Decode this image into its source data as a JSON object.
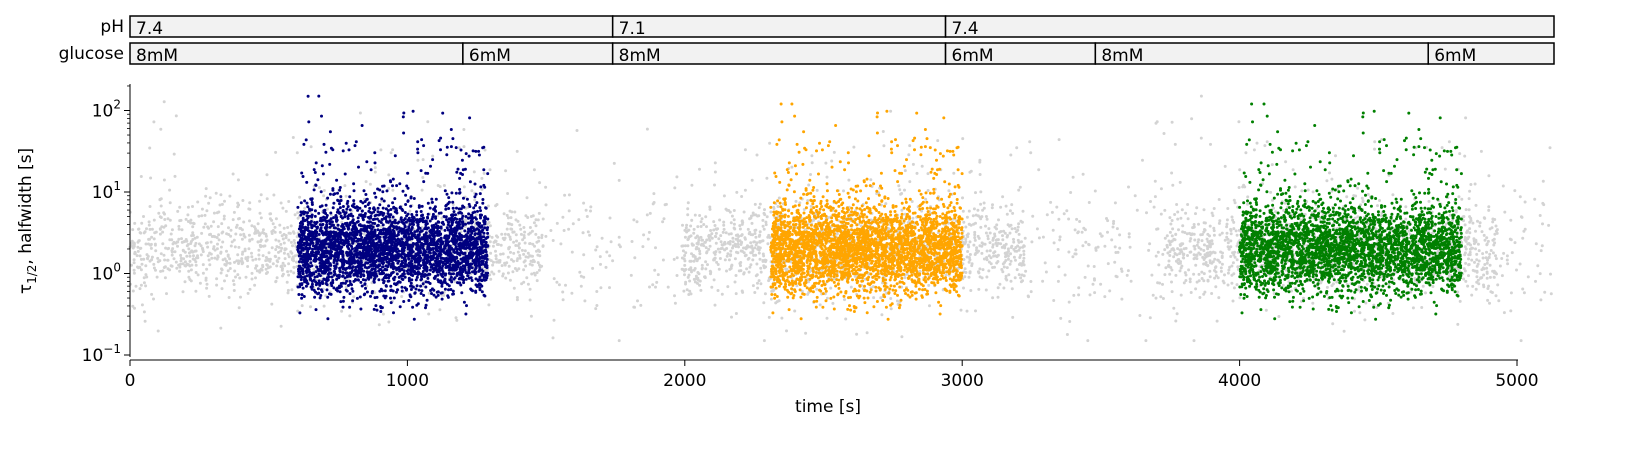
{
  "chart_data": {
    "type": "scatter",
    "xlabel": "time [s]",
    "ylabel_main": "τ",
    "ylabel_sub": "1/2",
    "ylabel_rest": ", halfwidth [s]",
    "xlim": [
      0,
      5000
    ],
    "ylim": [
      0.1,
      200
    ],
    "yscale": "log",
    "x_ticks": [
      {
        "value": 0,
        "label": "0"
      },
      {
        "value": 1000,
        "label": "1000"
      },
      {
        "value": 2000,
        "label": "2000"
      },
      {
        "value": 3000,
        "label": "3000"
      },
      {
        "value": 4000,
        "label": "4000"
      },
      {
        "value": 5000,
        "label": "5000"
      }
    ],
    "y_ticks": [
      {
        "value": 0.1,
        "base": "10",
        "exp": "−1"
      },
      {
        "value": 1,
        "base": "10",
        "exp": "0"
      },
      {
        "value": 10,
        "base": "10",
        "exp": "1"
      },
      {
        "value": 100,
        "base": "10",
        "exp": "2"
      }
    ],
    "conditions": [
      {
        "label": "pH",
        "segments": [
          {
            "start": 0,
            "end": 1740,
            "text": "7.4"
          },
          {
            "start": 1740,
            "end": 2940,
            "text": "7.1"
          },
          {
            "start": 2940,
            "end": 5140,
            "text": "7.4"
          }
        ]
      },
      {
        "label": "glucose",
        "segments": [
          {
            "start": 0,
            "end": 1200,
            "text": "8mM"
          },
          {
            "start": 1200,
            "end": 1740,
            "text": "6mM"
          },
          {
            "start": 1740,
            "end": 2940,
            "text": "8mM"
          },
          {
            "start": 2940,
            "end": 3480,
            "text": "6mM"
          },
          {
            "start": 3480,
            "end": 4680,
            "text": "8mM"
          },
          {
            "start": 4680,
            "end": 5140,
            "text": "6mM"
          }
        ]
      }
    ],
    "series": [
      {
        "color": "#d3d3d3",
        "x_range": [
          0,
          5140
        ],
        "dense_clusters": [
          [
            0,
            1490
          ],
          [
            1990,
            3230
          ],
          [
            3730,
            4930
          ]
        ],
        "y_median": 2.0,
        "y_min": 0.15,
        "y_max": 150
      },
      {
        "color": "#000080",
        "x_range": [
          605,
          1290
        ],
        "y_median": 2.0,
        "y_min": 0.13,
        "y_max": 150
      },
      {
        "color": "#ffa500",
        "x_range": [
          2310,
          3000
        ],
        "y_median": 2.0,
        "y_min": 0.17,
        "y_max": 120
      },
      {
        "color": "#008000",
        "x_range": [
          4000,
          4800
        ],
        "y_median": 2.0,
        "y_min": 0.12,
        "y_max": 120
      }
    ],
    "grid": false,
    "legend": "none"
  }
}
